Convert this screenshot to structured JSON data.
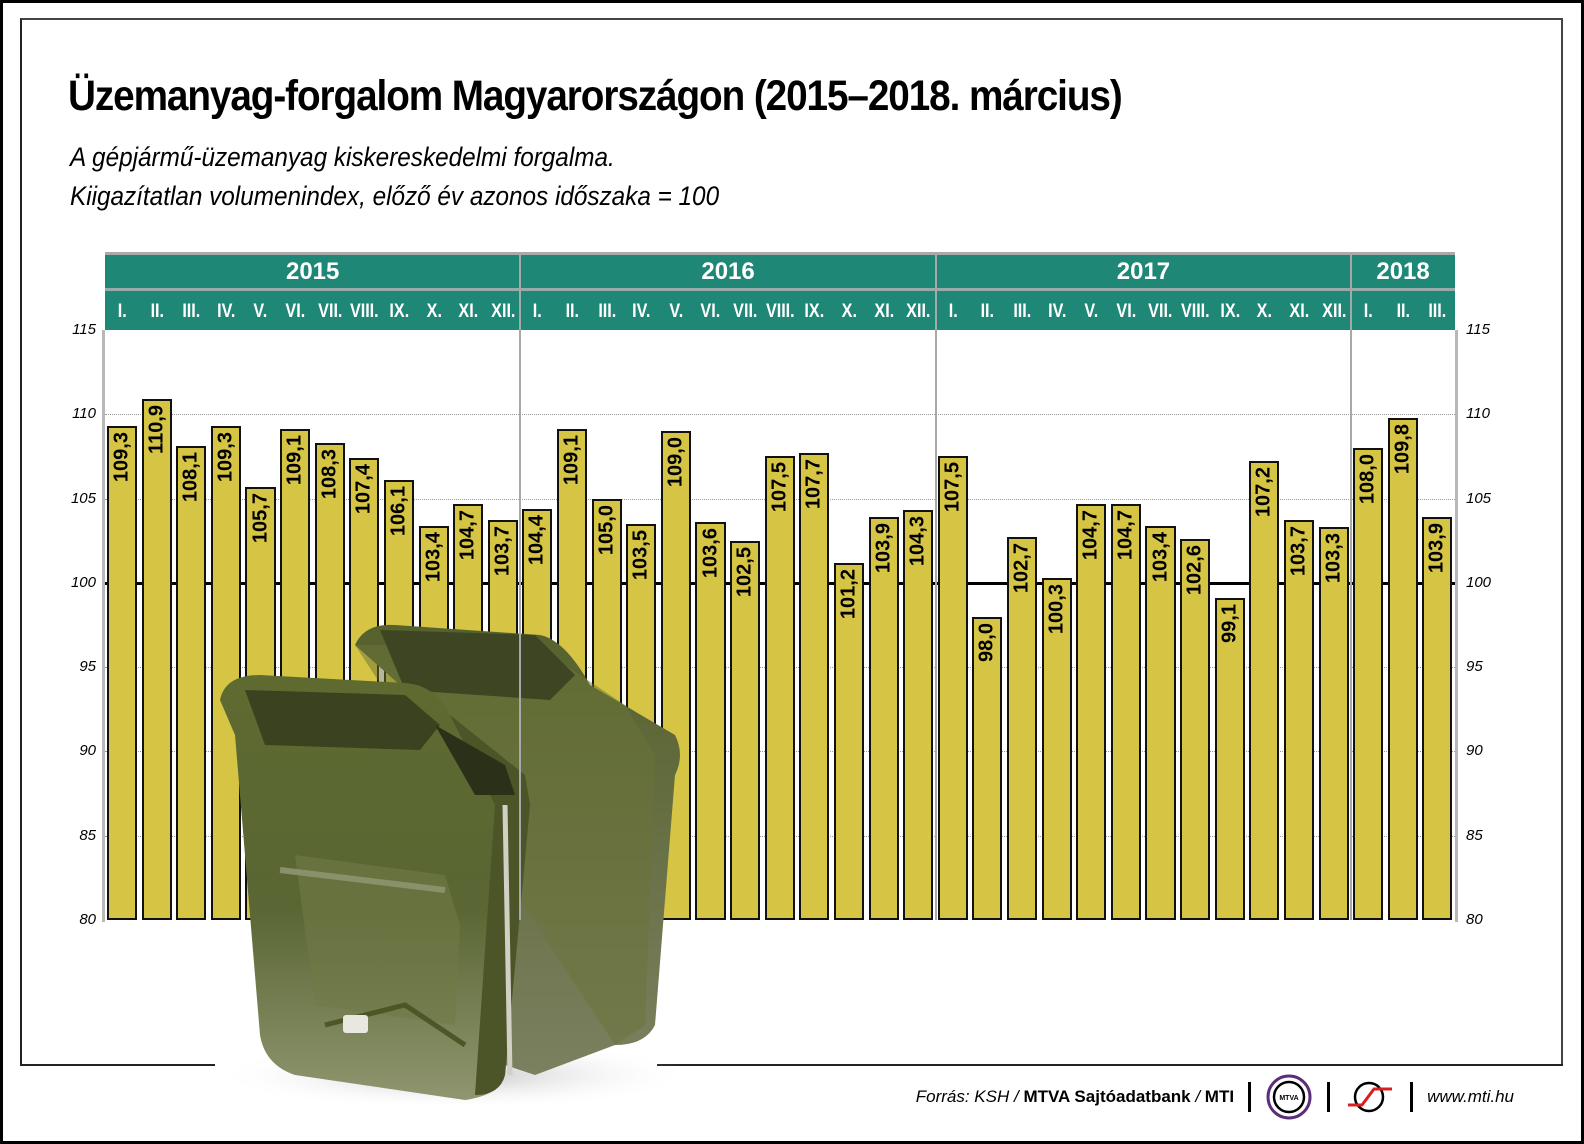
{
  "title": "Üzemanyag-forgalom Magyarországon (2015–2018. március)",
  "subtitle_lines": [
    "A gépjármű-üzemanyag kiskereskedelmi forgalma.",
    "Kiigazítatlan volumenindex, előző év azonos időszaka = 100"
  ],
  "footer": {
    "source_prefix": "Forrás: KSH / ",
    "source_bold_1": "MTVA Sajtóadatbank",
    "source_sep": " / ",
    "source_bold_2": "MTI",
    "logo_1": "MTVA",
    "url": "www.mti.hu"
  },
  "colors": {
    "header_green": "#1e8776",
    "bar_fill": "#d6c544",
    "bar_border": "#111111"
  },
  "chart_data": {
    "type": "bar",
    "title": "Üzemanyag-forgalom Magyarországon (2015–2018. március)",
    "subtitle": "A gépjármű-üzemanyag kiskereskedelmi forgalma. Kiigazítatlan volumenindex, előző év azonos időszaka = 100",
    "xlabel": "",
    "ylabel": "",
    "ylim": [
      80,
      115
    ],
    "yticks": [
      80,
      85,
      90,
      95,
      100,
      105,
      110,
      115
    ],
    "y_axis_both_sides": true,
    "reference_line": 100,
    "grid": "dotted horizontal",
    "legend": "none",
    "years": [
      {
        "label": "2015",
        "months": 12
      },
      {
        "label": "2016",
        "months": 12
      },
      {
        "label": "2017",
        "months": 12
      },
      {
        "label": "2018",
        "months": 3
      }
    ],
    "categories": [
      "I.",
      "II.",
      "III.",
      "IV.",
      "V.",
      "VI.",
      "VII.",
      "VIII.",
      "IX.",
      "X.",
      "XI.",
      "XII.",
      "I.",
      "II.",
      "III.",
      "IV.",
      "V.",
      "VI.",
      "VII.",
      "VIII.",
      "IX.",
      "X.",
      "XI.",
      "XII.",
      "I.",
      "II.",
      "III.",
      "IV.",
      "V.",
      "VI.",
      "VII.",
      "VIII.",
      "IX.",
      "X.",
      "XI.",
      "XII.",
      "I.",
      "II.",
      "III."
    ],
    "values": [
      109.3,
      110.9,
      108.1,
      109.3,
      105.7,
      109.1,
      108.3,
      107.4,
      106.1,
      103.4,
      104.7,
      103.7,
      104.4,
      109.1,
      105.0,
      103.5,
      109.0,
      103.6,
      102.5,
      107.5,
      107.7,
      101.2,
      103.9,
      104.3,
      107.5,
      98.0,
      102.7,
      100.3,
      104.7,
      104.7,
      103.4,
      102.6,
      99.1,
      107.2,
      103.7,
      103.3,
      108.0,
      109.8,
      103.9
    ],
    "value_labels": [
      "109,3",
      "110,9",
      "108,1",
      "109,3",
      "105,7",
      "109,1",
      "108,3",
      "107,4",
      "106,1",
      "103,4",
      "104,7",
      "103,7",
      "104,4",
      "109,1",
      "105,0",
      "103,5",
      "109,0",
      "103,6",
      "102,5",
      "107,5",
      "107,7",
      "101,2",
      "103,9",
      "104,3",
      "107,5",
      "98,0",
      "102,7",
      "100,3",
      "104,7",
      "104,7",
      "103,4",
      "102,6",
      "99,1",
      "107,2",
      "103,7",
      "103,3",
      "108,0",
      "109,8",
      "103,9"
    ]
  }
}
